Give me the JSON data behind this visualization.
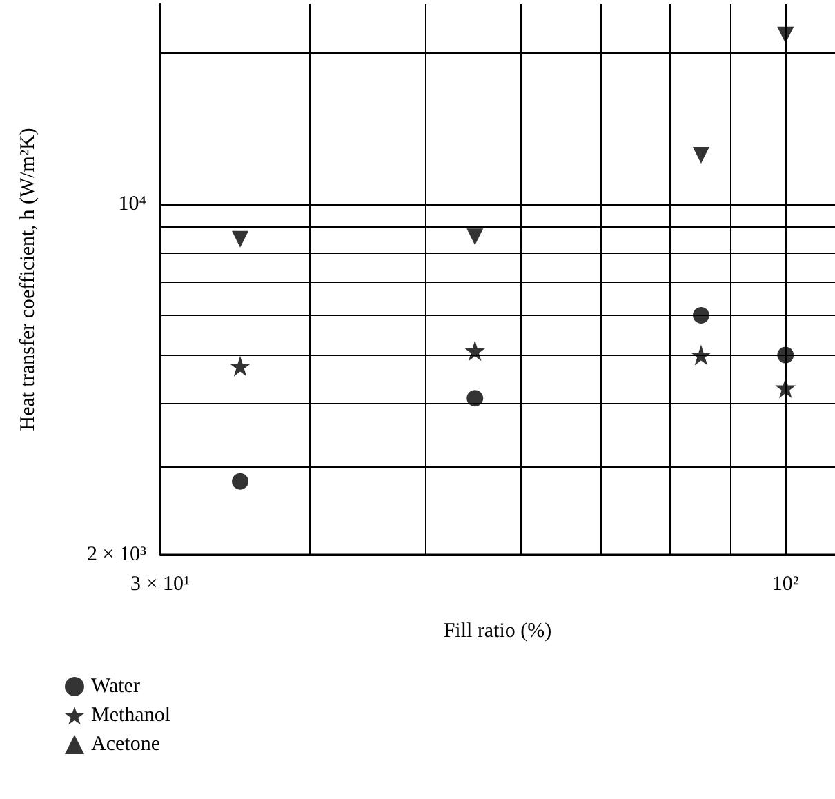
{
  "chart_data": {
    "type": "scatter",
    "xlabel": "Fill ratio (%)",
    "ylabel": "Heat transfer coefficient, h (W/m²K)",
    "x": [
      35,
      55,
      85,
      100
    ],
    "series": [
      {
        "name": "Water",
        "color": "#000000",
        "marker": "circle",
        "values": [
          2800,
          4100,
          6000,
          5000
        ]
      },
      {
        "name": "Methanol",
        "color": "#000000",
        "marker": "star",
        "values": [
          4750,
          5100,
          5000,
          4300
        ]
      },
      {
        "name": "Acetone",
        "color": "#000000",
        "marker": "triangle",
        "values": [
          8500,
          8600,
          12500,
          21700
        ]
      }
    ],
    "log": "xy",
    "xlim": [
      30,
      110
    ],
    "ylim": [
      2000,
      25000
    ],
    "xticks": [
      {
        "value": 30,
        "label": "3 × 10¹"
      },
      {
        "value": 40,
        "label": null
      },
      {
        "value": 50,
        "label": null
      },
      {
        "value": 60,
        "label": null
      },
      {
        "value": 70,
        "label": null
      },
      {
        "value": 80,
        "label": null
      },
      {
        "value": 90,
        "label": null
      },
      {
        "value": 100,
        "label": "10²"
      }
    ],
    "yticks": [
      {
        "value": 2000,
        "label": "2 × 10³"
      },
      {
        "value": 3000,
        "label": null
      },
      {
        "value": 4000,
        "label": null
      },
      {
        "value": 5000,
        "label": null
      },
      {
        "value": 6000,
        "label": null
      },
      {
        "value": 7000,
        "label": null
      },
      {
        "value": 8000,
        "label": null
      },
      {
        "value": 9000,
        "label": null
      },
      {
        "value": 10000,
        "label": "10⁴"
      },
      {
        "value": 20000,
        "label": null
      }
    ],
    "grid": true,
    "legend": "bottom left"
  }
}
